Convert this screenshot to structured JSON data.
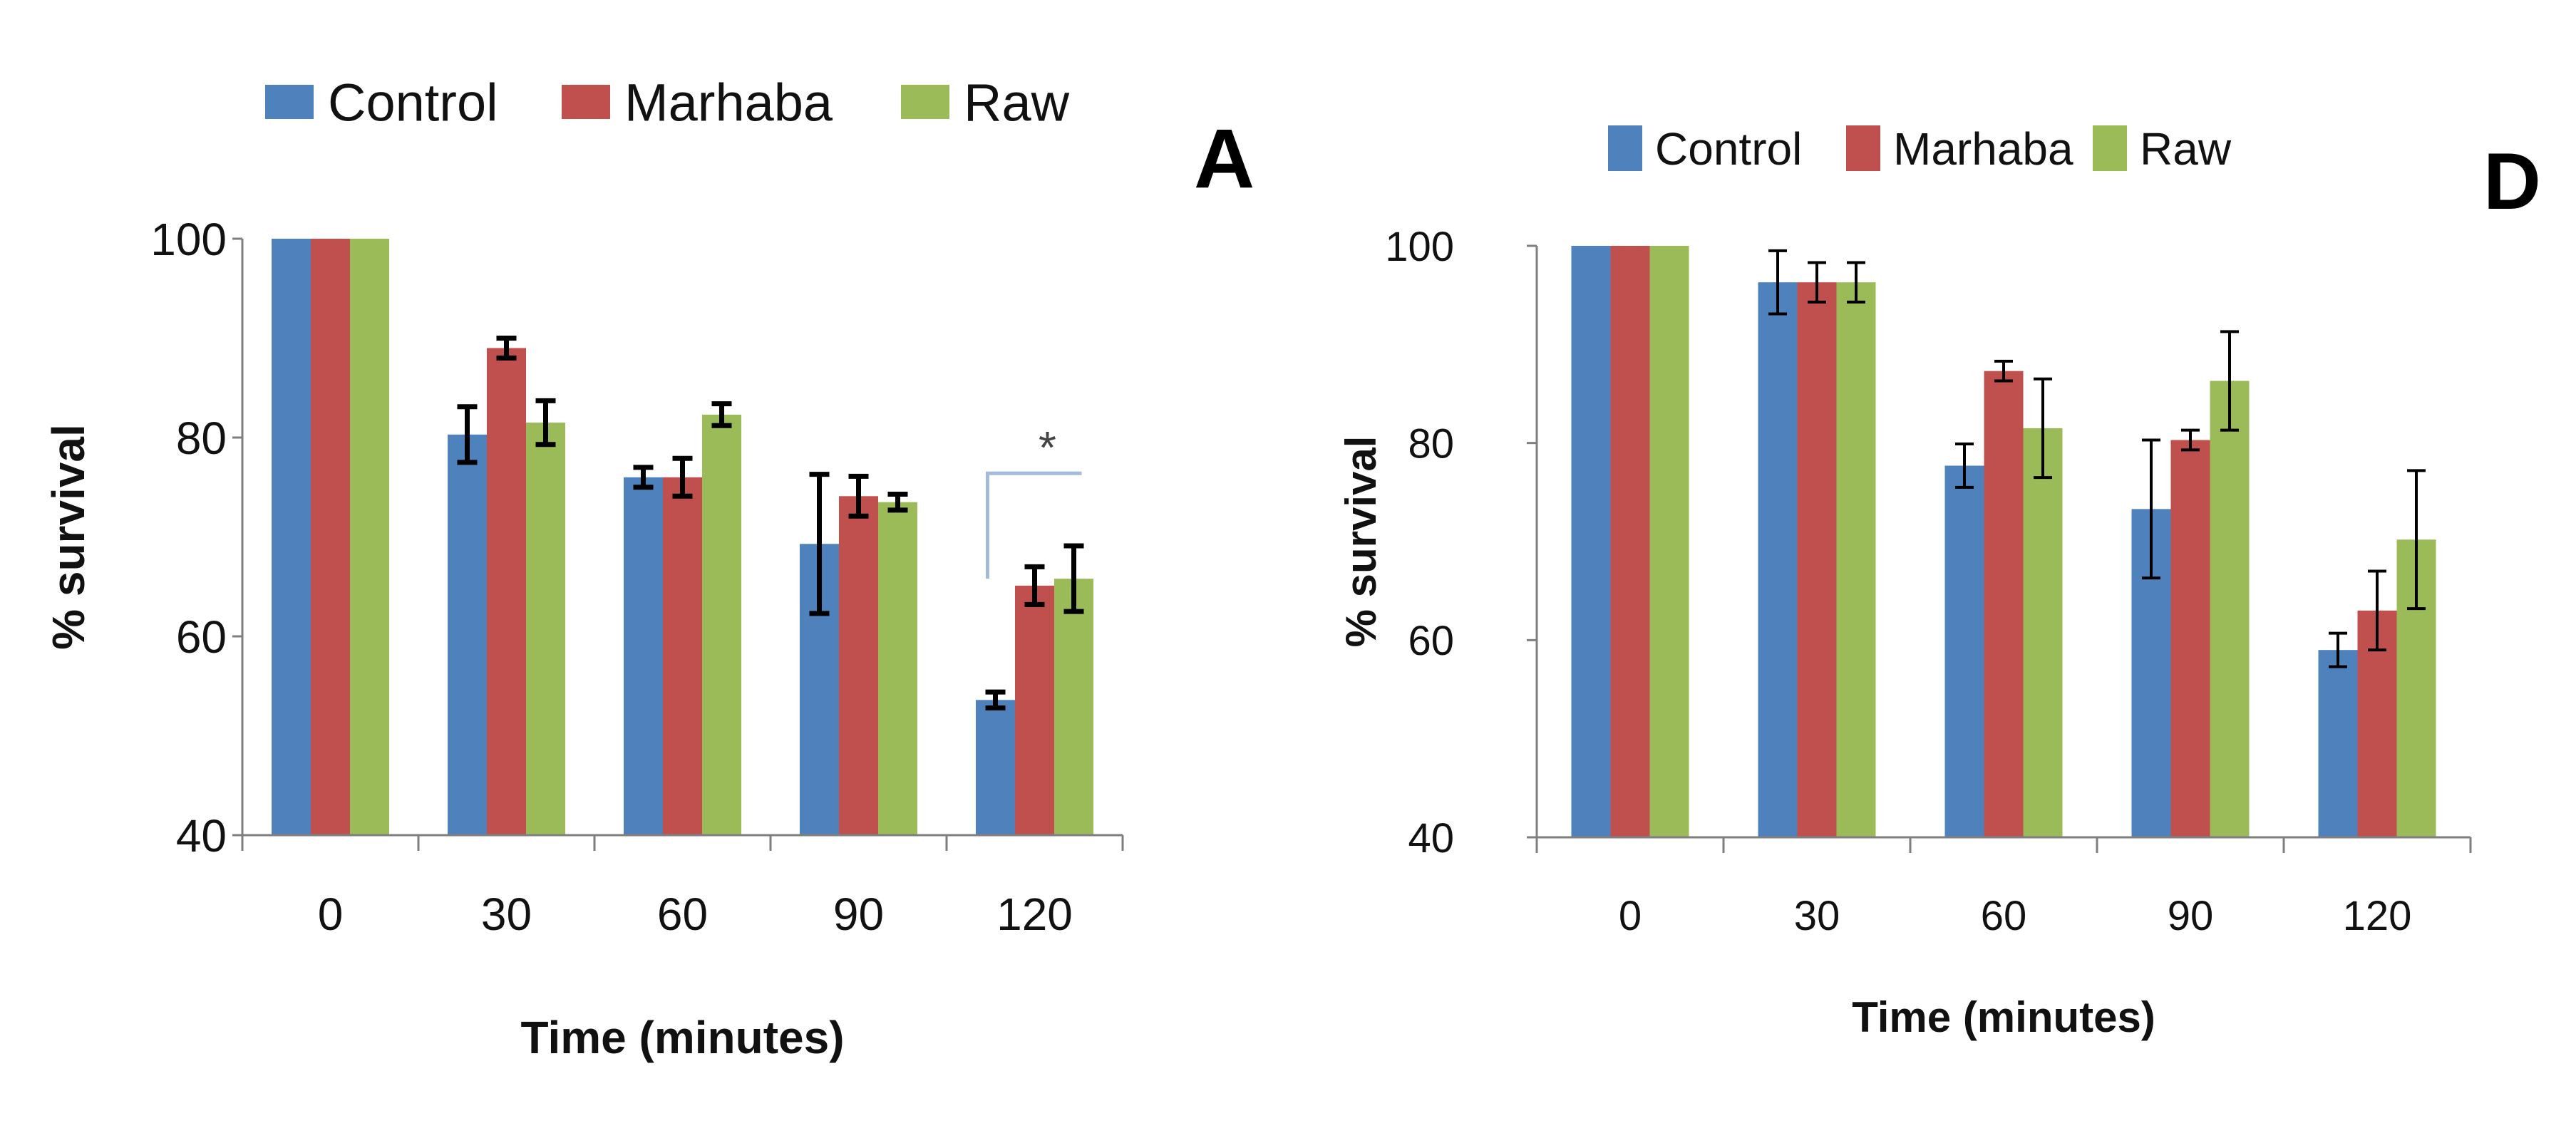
{
  "colors": {
    "control": "#4f81bd",
    "marhaba": "#c0504d",
    "raw": "#9bbb59",
    "bracket": "#a3bad8",
    "axis": "#7f7f7f",
    "error": "#000000"
  },
  "chart_data": [
    {
      "panel": "A",
      "type": "bar",
      "title": "",
      "xlabel": "Time (minutes)",
      "ylabel": "% survival",
      "categories": [
        "0",
        "30",
        "60",
        "90",
        "120"
      ],
      "ylim": [
        40,
        100
      ],
      "yticks": [
        "40",
        "60",
        "80",
        "100"
      ],
      "grid": false,
      "legend_position": "top",
      "series": [
        {
          "name": "Control",
          "color_key": "control",
          "values": [
            100,
            80.3,
            76,
            69.3,
            53.6
          ],
          "errors": [
            0,
            2.8,
            1,
            7,
            0.8
          ]
        },
        {
          "name": "Marhaba",
          "color_key": "marhaba",
          "values": [
            100,
            89,
            76,
            74.1,
            65.1
          ],
          "errors": [
            0,
            1,
            1.9,
            2,
            1.9
          ]
        },
        {
          "name": "Raw",
          "color_key": "raw",
          "values": [
            100,
            81.5,
            82.3,
            73.5,
            65.8
          ],
          "errors": [
            0,
            2.2,
            1.1,
            0.8,
            3.3
          ]
        }
      ],
      "annotation": {
        "text": "*",
        "category": "120",
        "between": [
          "Control",
          "Raw"
        ]
      }
    },
    {
      "panel": "D",
      "type": "bar",
      "title": "",
      "xlabel": "Time (minutes)",
      "ylabel": "% survival",
      "categories": [
        "0",
        "30",
        "60",
        "90",
        "120"
      ],
      "ylim": [
        40,
        100
      ],
      "yticks": [
        "40",
        "60",
        "80",
        "100"
      ],
      "grid": false,
      "legend_position": "top",
      "series": [
        {
          "name": "Control",
          "color_key": "control",
          "values": [
            100,
            96.3,
            77.7,
            73.3,
            59
          ],
          "errors": [
            0,
            3.2,
            2.2,
            7,
            1.7
          ]
        },
        {
          "name": "Marhaba",
          "color_key": "marhaba",
          "values": [
            100,
            96.3,
            87.3,
            80.3,
            63
          ],
          "errors": [
            0,
            2,
            1,
            1,
            4
          ]
        },
        {
          "name": "Raw",
          "color_key": "raw",
          "values": [
            100,
            96.3,
            81.5,
            86.3,
            70.2
          ],
          "errors": [
            0,
            2,
            5,
            5,
            7
          ]
        }
      ],
      "annotation": null
    }
  ]
}
